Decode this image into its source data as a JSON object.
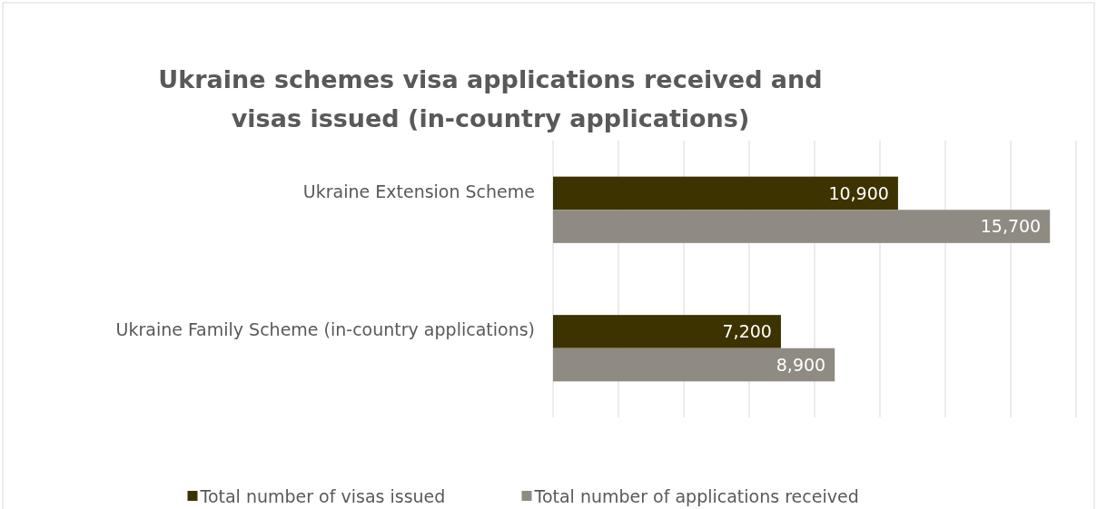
{
  "chart_data": {
    "type": "bar",
    "orientation": "horizontal",
    "title": "Ukraine schemes visa applications received and visas issued (in-country applications)",
    "categories": [
      "Ukraine Extension Scheme",
      "Ukraine Family Scheme (in-country applications)"
    ],
    "series": [
      {
        "name": "Total number of visas issued",
        "color": "#3d3300",
        "values": [
          10900,
          7200
        ],
        "value_labels": [
          "10,900",
          "7,200"
        ]
      },
      {
        "name": "Total number of applications received",
        "color": "#8f8b82",
        "values": [
          15700,
          8900
        ],
        "value_labels": [
          "15,700",
          "8,900"
        ]
      }
    ],
    "tick_labels": "y",
    "grid": "x",
    "legend": "bottom"
  }
}
